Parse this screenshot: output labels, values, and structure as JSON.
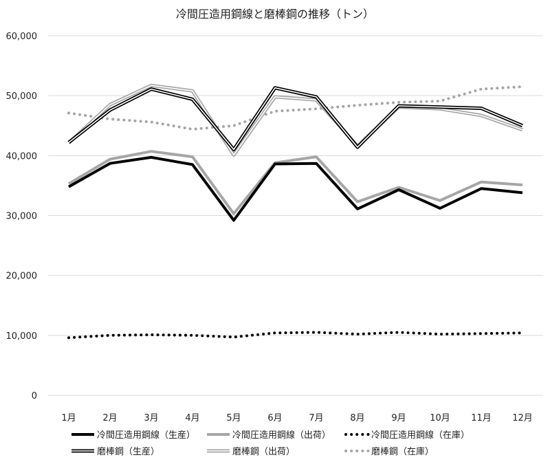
{
  "chart_data": {
    "type": "line",
    "title": "冷間圧造用鋼線と磨棒鋼の推移（トン）",
    "xlabel": "",
    "ylabel": "",
    "categories": [
      "1月",
      "2月",
      "3月",
      "4月",
      "5月",
      "6月",
      "7月",
      "8月",
      "9月",
      "10月",
      "11月",
      "12月"
    ],
    "ylim": [
      0,
      60000
    ],
    "yticks": [
      0,
      10000,
      20000,
      30000,
      40000,
      50000,
      60000
    ],
    "ytick_labels": [
      "0",
      "10,000",
      "20,000",
      "30,000",
      "40,000",
      "50,000",
      "60,000"
    ],
    "grid": true,
    "legend_position": "bottom",
    "series": [
      {
        "name": "冷間圧造用鋼線（生産）",
        "style": "solid-black-thick",
        "color": "#000000",
        "values": [
          34800,
          38700,
          39700,
          38500,
          29200,
          38600,
          38700,
          31100,
          34300,
          31200,
          34500,
          33800
        ]
      },
      {
        "name": "冷間圧造用鋼線（出荷）",
        "style": "solid-gray-thick",
        "color": "#a6a6a6",
        "values": [
          35300,
          39400,
          40700,
          39800,
          30300,
          38800,
          39800,
          32300,
          34700,
          32500,
          35600,
          35100
        ]
      },
      {
        "name": "冷間圧造用鋼線（在庫）",
        "style": "dotted-black",
        "color": "#000000",
        "values": [
          9600,
          10000,
          10100,
          10000,
          9700,
          10400,
          10500,
          10200,
          10500,
          10200,
          10300,
          10400
        ]
      },
      {
        "name": "磨棒鋼（生産）",
        "style": "double-black",
        "color": "#000000",
        "values": [
          42200,
          47600,
          51100,
          49400,
          41000,
          51300,
          49800,
          41400,
          48300,
          48100,
          47900,
          45000
        ]
      },
      {
        "name": "磨棒鋼（出荷）",
        "style": "double-gray",
        "color": "#a6a6a6",
        "values": [
          42100,
          48500,
          51700,
          50800,
          40100,
          49800,
          49300,
          41600,
          48100,
          47800,
          46700,
          44300
        ]
      },
      {
        "name": "磨棒鋼（在庫）",
        "style": "dotted-gray",
        "color": "#a6a6a6",
        "values": [
          47100,
          46100,
          45600,
          44400,
          45000,
          47400,
          47800,
          48400,
          48900,
          49100,
          51100,
          51500
        ]
      }
    ]
  }
}
